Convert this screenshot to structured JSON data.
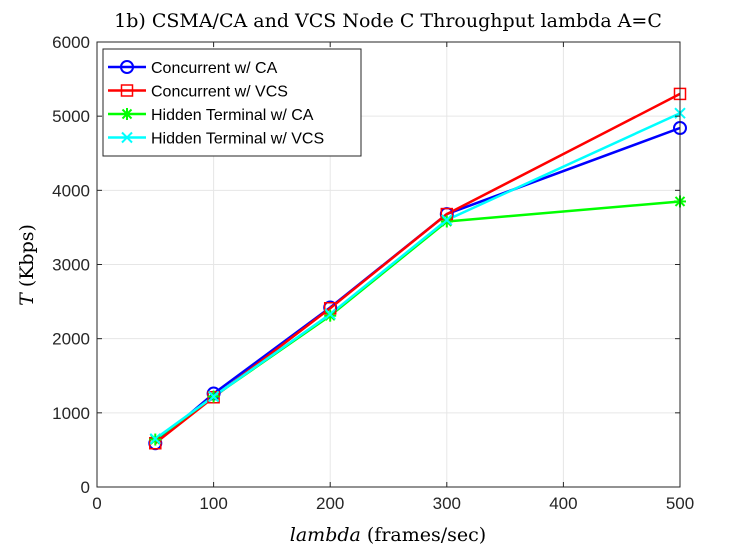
{
  "chart_data": {
    "type": "line",
    "title": "1b) CSMA/CA and VCS Node C Throughput lambda A=C",
    "xlabel": "lambda (frames/sec)",
    "xlabel_italic_part": "lambda",
    "xlabel_rest": " (frames/sec)",
    "ylabel": "T (Kbps)",
    "ylabel_italic_part": "T",
    "ylabel_rest": " (Kbps)",
    "xlim": [
      0,
      500
    ],
    "ylim": [
      0,
      6000
    ],
    "xticks": [
      0,
      100,
      200,
      300,
      400,
      500
    ],
    "yticks": [
      0,
      1000,
      2000,
      3000,
      4000,
      5000,
      6000
    ],
    "grid": true,
    "legend_position": "top-left",
    "x": [
      50,
      100,
      200,
      300,
      500
    ],
    "series": [
      {
        "name": "Concurrent w/ CA",
        "color": "#0000ff",
        "marker": "circle",
        "values": [
          590,
          1260,
          2420,
          3680,
          4840
        ]
      },
      {
        "name": "Concurrent w/ VCS",
        "color": "#ff0000",
        "marker": "square",
        "values": [
          590,
          1210,
          2410,
          3680,
          5300
        ]
      },
      {
        "name": "Hidden Terminal w/ CA",
        "color": "#00ff00",
        "marker": "asterisk",
        "values": [
          640,
          1220,
          2310,
          3580,
          3850
        ]
      },
      {
        "name": "Hidden Terminal w/ VCS",
        "color": "#00ffff",
        "marker": "x",
        "values": [
          650,
          1220,
          2330,
          3600,
          5040
        ]
      }
    ]
  }
}
